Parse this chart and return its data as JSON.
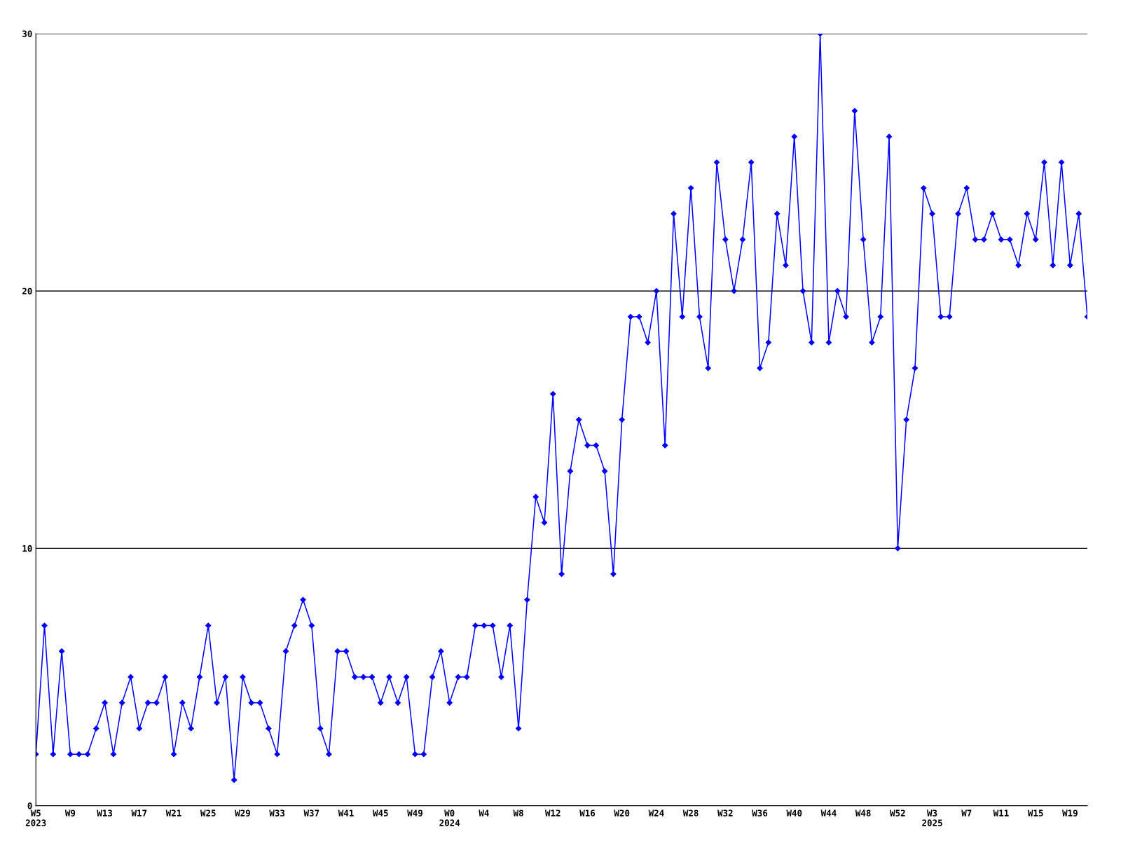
{
  "chart_data": {
    "type": "line",
    "categories": [
      "W5\n2023",
      null,
      null,
      null,
      "W9",
      null,
      null,
      null,
      "W13",
      null,
      null,
      null,
      "W17",
      null,
      null,
      null,
      "W21",
      null,
      null,
      null,
      "W25",
      null,
      null,
      null,
      "W29",
      null,
      null,
      null,
      "W33",
      null,
      null,
      null,
      "W37",
      null,
      null,
      null,
      "W41",
      null,
      null,
      null,
      "W45",
      null,
      null,
      null,
      "W49",
      null,
      null,
      null,
      "W0\n2024",
      null,
      null,
      null,
      "W4",
      null,
      null,
      null,
      "W8",
      null,
      null,
      null,
      "W12",
      null,
      null,
      null,
      "W16",
      null,
      null,
      null,
      "W20",
      null,
      null,
      null,
      "W24",
      null,
      null,
      null,
      "W28",
      null,
      null,
      null,
      "W32",
      null,
      null,
      null,
      "W36",
      null,
      null,
      null,
      "W40",
      null,
      null,
      null,
      "W44",
      null,
      null,
      null,
      "W48",
      null,
      null,
      null,
      "W52",
      null,
      null,
      null,
      "W3\n2025",
      null,
      null,
      null,
      "W7",
      null,
      null,
      null,
      "W11",
      null,
      null,
      null,
      "W15",
      null,
      null,
      null,
      "W19",
      null,
      null
    ],
    "series": [
      {
        "color": "#0000ff",
        "values": [
          2,
          7,
          2,
          6,
          2,
          2,
          2,
          3,
          4,
          2,
          4,
          5,
          3,
          4,
          4,
          5,
          2,
          4,
          3,
          5,
          7,
          4,
          5,
          1,
          5,
          4,
          4,
          3,
          2,
          6,
          7,
          8,
          7,
          3,
          2,
          6,
          6,
          5,
          5,
          5,
          4,
          5,
          4,
          5,
          2,
          2,
          5,
          6,
          4,
          5,
          5,
          7,
          7,
          7,
          5,
          7,
          3,
          8,
          12,
          11,
          16,
          9,
          13,
          15,
          14,
          14,
          13,
          9,
          15,
          19,
          19,
          18,
          20,
          14,
          23,
          19,
          24,
          19,
          17,
          25,
          22,
          20,
          22,
          25,
          17,
          18,
          23,
          21,
          26,
          20,
          18,
          30,
          18,
          20,
          19,
          27,
          22,
          18,
          19,
          26,
          10,
          15,
          17,
          24,
          23,
          19,
          19,
          23,
          24,
          22,
          22,
          23,
          22,
          22,
          21,
          23,
          22,
          25,
          21,
          25,
          21,
          23,
          19
        ]
      }
    ],
    "ylim": [
      0,
      30
    ],
    "yticks": [
      0,
      10,
      20,
      30
    ],
    "grid": "y",
    "legend": false,
    "marker": "diamond",
    "line_style": "solid"
  }
}
